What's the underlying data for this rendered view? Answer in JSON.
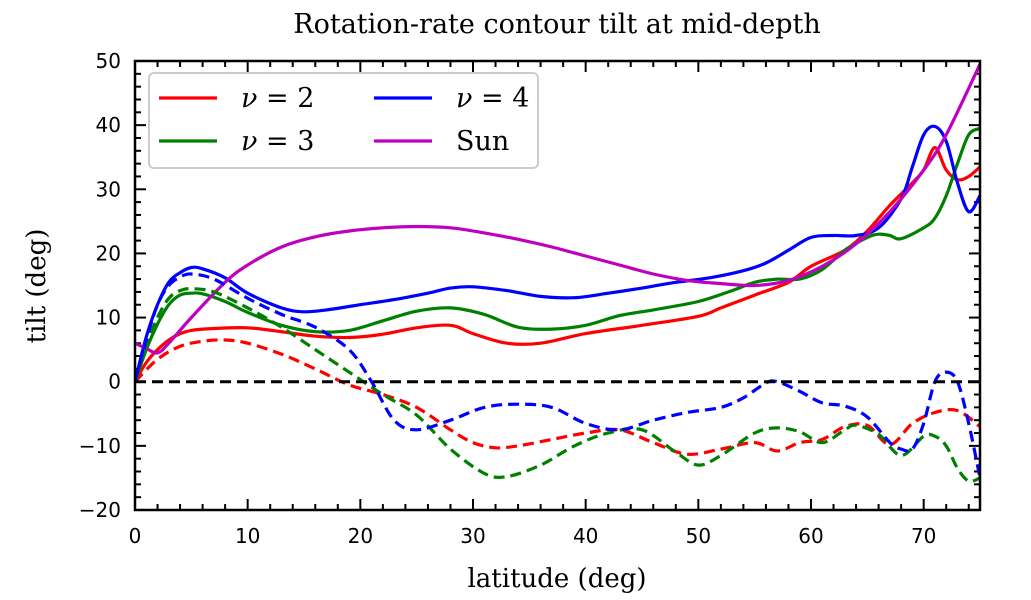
{
  "chart_data": {
    "type": "line",
    "title": "Rotation-rate contour tilt at mid-depth",
    "xlabel": "latitude (deg)",
    "ylabel": "tilt (deg)",
    "xlim": [
      0,
      75
    ],
    "ylim": [
      -20,
      50
    ],
    "xticks": [
      0,
      10,
      20,
      30,
      40,
      50,
      60,
      70
    ],
    "yticks": [
      -20,
      -10,
      0,
      10,
      20,
      30,
      40,
      50
    ],
    "xtick_labels": [
      "0",
      "10",
      "20",
      "30",
      "40",
      "50",
      "60",
      "70"
    ],
    "ytick_labels": [
      "−20",
      "−10",
      "0",
      "10",
      "20",
      "30",
      "40",
      "50"
    ],
    "reference_line": {
      "y": 0,
      "style": "dashed",
      "color": "#000000"
    },
    "legend": {
      "location": "top-left",
      "columns": 2,
      "entries": [
        {
          "series": "nu2",
          "label_prefix": "ν",
          "label_suffix": " = 2",
          "color": "#ff0000"
        },
        {
          "series": "nu3",
          "label_prefix": "ν",
          "label_suffix": " = 3",
          "color": "#008000"
        },
        {
          "series": "nu4",
          "label_prefix": "ν",
          "label_suffix": " = 4",
          "color": "#0000ff"
        },
        {
          "series": "sun",
          "label_prefix": "Sun",
          "label_suffix": "",
          "color": "#bf00bf"
        }
      ]
    },
    "series": [
      {
        "id": "nu2-solid",
        "name": "ν = 2",
        "color": "#ff0000",
        "style": "solid",
        "x": [
          0,
          1,
          2,
          3,
          4,
          5,
          7,
          10,
          13,
          16,
          19,
          22,
          25,
          28,
          30,
          33,
          36,
          40,
          45,
          50,
          52,
          55,
          58,
          60,
          63,
          65,
          67,
          69,
          70,
          71,
          72,
          73,
          74,
          75
        ],
        "y": [
          0,
          3,
          5,
          6.5,
          7.5,
          8,
          8.3,
          8.4,
          7.8,
          7.1,
          6.9,
          7.4,
          8.4,
          8.8,
          7.5,
          6,
          6,
          7.5,
          8.8,
          10.2,
          11.5,
          13.5,
          15.5,
          18,
          20.5,
          23.5,
          27.5,
          31,
          33,
          36.5,
          33,
          31.5,
          32,
          33.5
        ]
      },
      {
        "id": "nu3-solid",
        "name": "ν = 3",
        "color": "#008000",
        "style": "solid",
        "x": [
          0,
          1,
          2,
          3,
          4,
          5,
          6,
          8,
          10,
          13,
          16,
          19,
          22,
          25,
          28,
          31,
          34,
          37,
          40,
          43,
          46,
          50,
          53,
          55,
          57,
          59,
          61,
          63,
          65,
          66,
          67,
          68,
          70,
          71,
          72,
          73,
          74,
          75
        ],
        "y": [
          0,
          5,
          9,
          12,
          13.5,
          13.8,
          13.7,
          12.5,
          10.8,
          8.8,
          7.8,
          8,
          9.5,
          11,
          11.5,
          10.5,
          8.5,
          8.2,
          8.8,
          10.3,
          11.2,
          12.5,
          14.2,
          15.5,
          16,
          16,
          17.5,
          20.5,
          22.5,
          23,
          22.8,
          22.3,
          24,
          25.5,
          29,
          34,
          38.5,
          39.5
        ]
      },
      {
        "id": "nu4-solid",
        "name": "ν = 4",
        "color": "#0000ff",
        "style": "solid",
        "x": [
          0,
          1,
          2,
          3,
          4,
          5,
          6,
          8,
          10,
          13,
          15,
          17,
          20,
          23,
          26,
          28,
          30,
          33,
          36,
          39,
          42,
          45,
          48,
          51,
          54,
          56,
          58,
          60,
          62,
          64,
          66,
          68,
          69,
          70,
          71,
          72,
          73,
          74,
          75
        ],
        "y": [
          0,
          7,
          12,
          15.5,
          17,
          17.8,
          17.6,
          16.2,
          13.8,
          11.5,
          10.9,
          11.2,
          12,
          12.8,
          13.8,
          14.6,
          14.8,
          14.2,
          13.3,
          13.1,
          13.8,
          14.6,
          15.5,
          16.2,
          17.3,
          18.5,
          20.5,
          22.5,
          22.8,
          22.8,
          24,
          28.5,
          33.5,
          38.5,
          39.8,
          37.5,
          31,
          26.5,
          29
        ]
      },
      {
        "id": "sun",
        "name": "Sun",
        "color": "#bf00bf",
        "style": "solid",
        "x": [
          0,
          1,
          2,
          3,
          5,
          8,
          10,
          13,
          16,
          19,
          22,
          25,
          28,
          31,
          34,
          37,
          40,
          43,
          46,
          49,
          52,
          55,
          58,
          61,
          64,
          67,
          70,
          72,
          75
        ],
        "y": [
          6,
          5.2,
          4.5,
          6,
          10,
          15.5,
          18.2,
          21,
          22.6,
          23.5,
          24,
          24.2,
          24,
          23.2,
          22.2,
          21,
          19.6,
          18.2,
          16.8,
          15.8,
          15.3,
          15,
          15.8,
          18,
          21.5,
          26.5,
          33,
          38.5,
          49.5
        ]
      },
      {
        "id": "nu2-dashed",
        "name": "ν = 2",
        "color": "#ff0000",
        "style": "dashed",
        "x": [
          0,
          2,
          4,
          6,
          8,
          10,
          13,
          16,
          19,
          22,
          25,
          28,
          30,
          32,
          34,
          37,
          40,
          43,
          46,
          49,
          52,
          55,
          57,
          59,
          61,
          63,
          65,
          67,
          69,
          71,
          73,
          75
        ],
        "y": [
          0,
          3.5,
          5.5,
          6.3,
          6.5,
          6,
          4.3,
          2,
          -0.5,
          -2,
          -4,
          -7.5,
          -9.5,
          -10.3,
          -10,
          -9,
          -8,
          -7.5,
          -9.5,
          -11.3,
          -10.5,
          -9.5,
          -10.8,
          -9.5,
          -9,
          -7,
          -6.8,
          -9.8,
          -6.5,
          -4.8,
          -4.5,
          -7
        ]
      },
      {
        "id": "nu3-dashed",
        "name": "ν = 3",
        "color": "#008000",
        "style": "dashed",
        "x": [
          0,
          1,
          2,
          3,
          4,
          5,
          7,
          10,
          13,
          16,
          19,
          22,
          25,
          28,
          31,
          33,
          36,
          39,
          42,
          45,
          48,
          50,
          52,
          55,
          57,
          59,
          61,
          63,
          64,
          66,
          68,
          70,
          71,
          72,
          73,
          74,
          75
        ],
        "y": [
          0,
          5.5,
          10,
          13,
          14.2,
          14.5,
          14,
          11.5,
          8.5,
          5,
          1.5,
          -2,
          -5.2,
          -10.5,
          -14.3,
          -14.8,
          -13,
          -10,
          -8,
          -7.5,
          -11,
          -13,
          -11.5,
          -8,
          -7.2,
          -7.8,
          -9.5,
          -7.5,
          -6.8,
          -8.2,
          -11.5,
          -8.5,
          -8.5,
          -10,
          -13.5,
          -15.5,
          -15
        ]
      },
      {
        "id": "nu4-dashed",
        "name": "ν = 4",
        "color": "#0000ff",
        "style": "dashed",
        "x": [
          0,
          1,
          2,
          3,
          4,
          5,
          7,
          10,
          13,
          16,
          19,
          21,
          23,
          25,
          28,
          31,
          34,
          37,
          40,
          43,
          46,
          49,
          52,
          54,
          56,
          57,
          59,
          61,
          63,
          65,
          67,
          68,
          69,
          70,
          71,
          72,
          73,
          74,
          75
        ],
        "y": [
          0,
          6.5,
          12,
          15,
          16.3,
          16.8,
          16,
          13,
          10.5,
          8.5,
          5,
          0,
          -6,
          -7.5,
          -6,
          -4,
          -3.5,
          -4,
          -6.5,
          -7.5,
          -6,
          -4.8,
          -4,
          -2.5,
          -0.2,
          0,
          -1.5,
          -3.3,
          -3.8,
          -5.5,
          -9.5,
          -10.5,
          -10.5,
          -6.5,
          0,
          1.5,
          0,
          -6.5,
          -15
        ]
      }
    ]
  }
}
